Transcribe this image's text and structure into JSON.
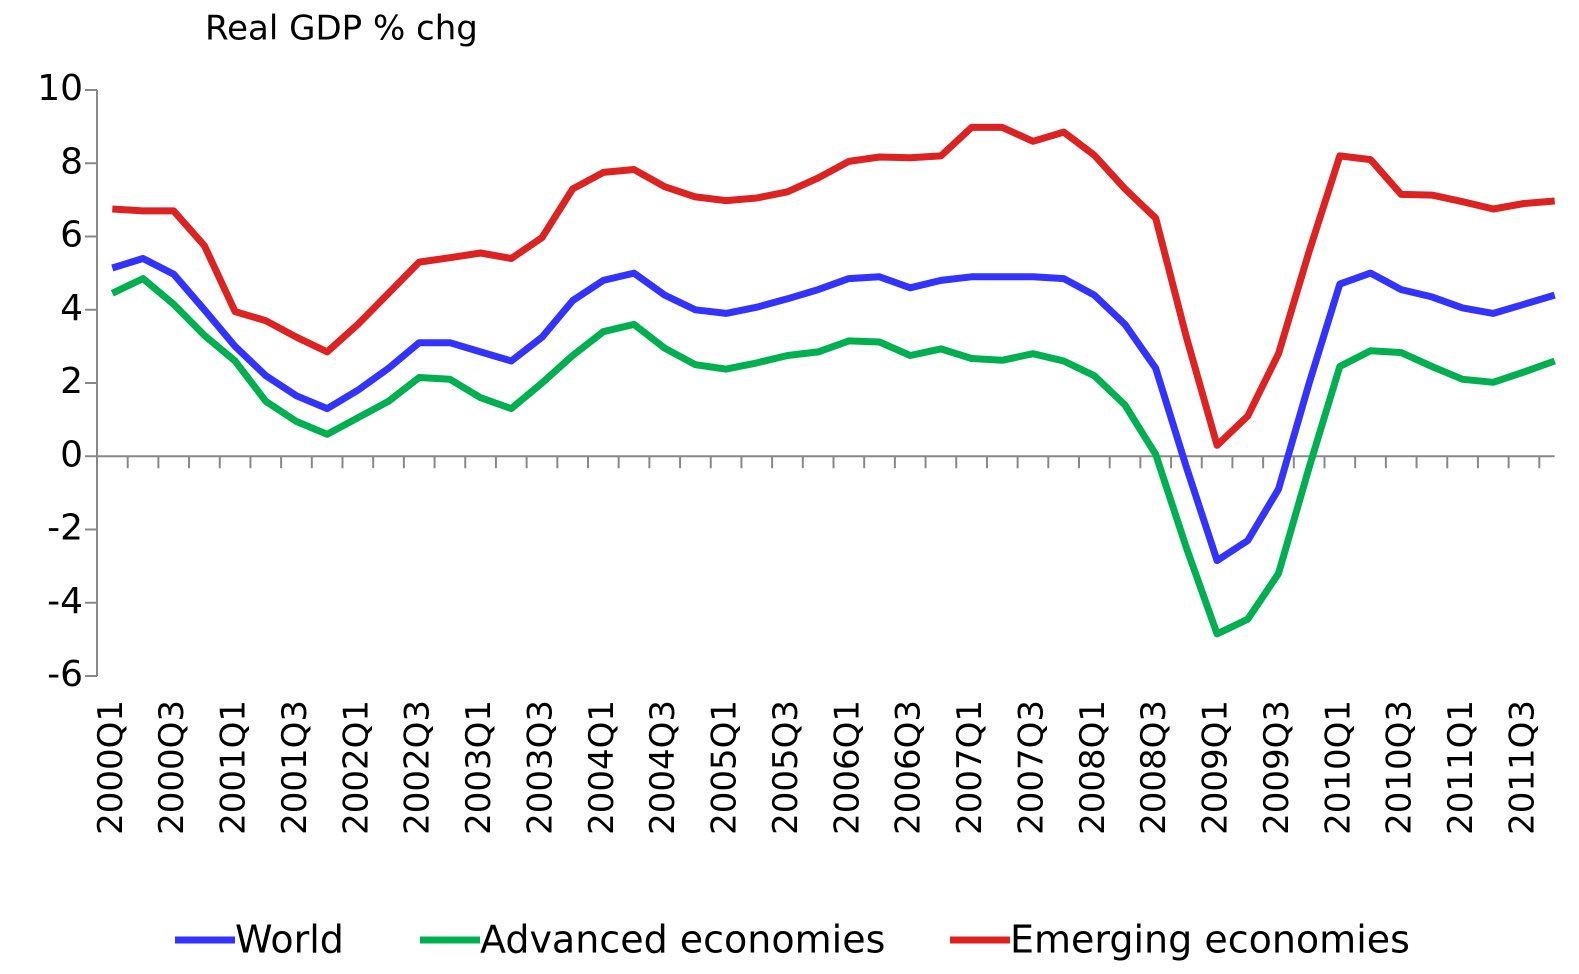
{
  "chart_data": {
    "type": "line",
    "y_axis_label": "Real GDP % chg",
    "categories": [
      "2000Q1",
      null,
      "2000Q3",
      null,
      "2001Q1",
      null,
      "2001Q3",
      null,
      "2002Q1",
      null,
      "2002Q3",
      null,
      "2003Q1",
      null,
      "2003Q3",
      null,
      "2004Q1",
      null,
      "2004Q3",
      null,
      "2005Q1",
      null,
      "2005Q3",
      null,
      "2006Q1",
      null,
      "2006Q3",
      null,
      "2007Q1",
      null,
      "2007Q3",
      null,
      "2008Q1",
      null,
      "2008Q3",
      null,
      "2009Q1",
      null,
      "2009Q3",
      null,
      "2010Q1",
      null,
      "2010Q3",
      null,
      "2011Q1",
      null,
      "2011Q3",
      null
    ],
    "series": [
      {
        "name": "World",
        "color": "#3333ff",
        "values": [
          5.14,
          5.4,
          4.97,
          4.0,
          3.0,
          2.2,
          1.65,
          1.3,
          1.8,
          2.4,
          3.1,
          3.1,
          2.85,
          2.6,
          3.25,
          4.25,
          4.8,
          5.0,
          4.4,
          4.0,
          3.9,
          4.07,
          4.3,
          4.55,
          4.85,
          4.9,
          4.6,
          4.8,
          4.9,
          4.9,
          4.9,
          4.85,
          4.4,
          3.6,
          2.4,
          -0.3,
          -2.85,
          -2.3,
          -0.9,
          2.0,
          4.7,
          5.0,
          4.55,
          4.35,
          4.05,
          3.9,
          4.15,
          4.4
        ]
      },
      {
        "name": "Advanced economies",
        "color": "#00b050",
        "values": [
          4.45,
          4.85,
          4.15,
          3.3,
          2.6,
          1.5,
          0.95,
          0.6,
          1.05,
          1.5,
          2.15,
          2.1,
          1.6,
          1.3,
          2.0,
          2.75,
          3.4,
          3.6,
          2.95,
          2.5,
          2.38,
          2.55,
          2.75,
          2.85,
          3.15,
          3.12,
          2.75,
          2.93,
          2.67,
          2.62,
          2.8,
          2.6,
          2.2,
          1.4,
          0.05,
          -2.5,
          -4.85,
          -4.45,
          -3.2,
          -0.3,
          2.45,
          2.88,
          2.83,
          2.45,
          2.1,
          2.02,
          2.3,
          2.6
        ]
      },
      {
        "name": "Emerging economies",
        "color": "#dd2222",
        "values": [
          6.75,
          6.7,
          6.7,
          5.75,
          3.95,
          3.7,
          3.25,
          2.85,
          3.6,
          4.45,
          5.3,
          5.42,
          5.55,
          5.4,
          5.97,
          7.3,
          7.75,
          7.83,
          7.36,
          7.08,
          6.98,
          7.05,
          7.22,
          7.6,
          8.05,
          8.17,
          8.15,
          8.2,
          8.98,
          8.98,
          8.6,
          8.85,
          8.22,
          7.3,
          6.5,
          3.25,
          0.3,
          1.1,
          2.8,
          5.6,
          8.2,
          8.1,
          7.15,
          7.13,
          6.95,
          6.75,
          6.9,
          6.97
        ]
      }
    ],
    "ylim": [
      -6,
      10
    ],
    "yticks": [
      -6,
      -4,
      -2,
      0,
      2,
      4,
      6,
      8,
      10
    ],
    "grid": false,
    "legend": "bottom"
  }
}
